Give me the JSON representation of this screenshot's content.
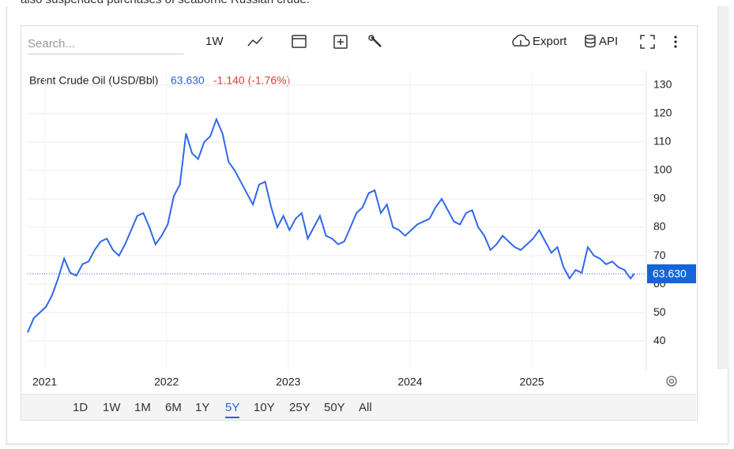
{
  "intro_text": "also suspended purchases of seaborne Russian crude.",
  "toolbar": {
    "search_placeholder": "Search...",
    "interval": "1W",
    "export": "Export",
    "api": "API"
  },
  "ranges": [
    "1D",
    "1W",
    "1M",
    "6M",
    "1Y",
    "5Y",
    "10Y",
    "25Y",
    "50Y",
    "All"
  ],
  "selected_range": 5,
  "chart_data": {
    "type": "line",
    "title": "Brent Crude Oil (USD/Bbl)",
    "price": {
      "value": 63.63,
      "label": "63.630"
    },
    "change_label": "-1.140 (-1.76%)",
    "x": [
      2020.86,
      2020.91,
      2020.96,
      2021.01,
      2021.06,
      2021.11,
      2021.16,
      2021.21,
      2021.26,
      2021.31,
      2021.36,
      2021.41,
      2021.46,
      2021.51,
      2021.56,
      2021.61,
      2021.66,
      2021.71,
      2021.76,
      2021.81,
      2021.86,
      2021.91,
      2021.96,
      2022.01,
      2022.06,
      2022.11,
      2022.16,
      2022.21,
      2022.26,
      2022.31,
      2022.36,
      2022.41,
      2022.46,
      2022.51,
      2022.56,
      2022.61,
      2022.66,
      2022.71,
      2022.76,
      2022.81,
      2022.86,
      2022.91,
      2022.96,
      2023.01,
      2023.06,
      2023.11,
      2023.16,
      2023.21,
      2023.26,
      2023.31,
      2023.36,
      2023.41,
      2023.46,
      2023.51,
      2023.56,
      2023.61,
      2023.66,
      2023.71,
      2023.76,
      2023.81,
      2023.86,
      2023.91,
      2023.96,
      2024.01,
      2024.06,
      2024.11,
      2024.16,
      2024.21,
      2024.26,
      2024.31,
      2024.36,
      2024.41,
      2024.46,
      2024.51,
      2024.56,
      2024.61,
      2024.66,
      2024.71,
      2024.76,
      2024.81,
      2024.86,
      2024.91,
      2024.96,
      2025.01,
      2025.06,
      2025.11,
      2025.16,
      2025.21,
      2025.26,
      2025.31,
      2025.36,
      2025.41,
      2025.46,
      2025.51,
      2025.56,
      2025.61,
      2025.66,
      2025.71,
      2025.76,
      2025.81,
      2025.84
    ],
    "series": [
      {
        "name": "Brent Crude Oil (USD/Bbl)",
        "color": "#3168ea",
        "values": [
          43,
          48,
          50,
          52,
          56,
          62,
          69,
          64,
          63,
          67,
          68,
          72,
          75,
          76,
          72,
          70,
          74,
          79,
          84,
          85,
          80,
          74,
          77,
          81,
          91,
          95,
          113,
          106,
          104,
          110,
          112,
          118,
          113,
          103,
          100,
          96,
          92,
          88,
          95,
          96,
          87,
          80,
          84,
          79,
          83,
          85,
          76,
          80,
          84,
          77,
          76,
          74,
          75,
          80,
          85,
          87,
          92,
          93,
          85,
          88,
          80,
          79,
          77,
          79,
          81,
          82,
          83,
          87,
          90,
          86,
          82,
          81,
          85,
          86,
          80,
          77,
          72,
          74,
          77,
          75,
          73,
          72,
          74,
          76,
          79,
          75,
          71,
          73,
          66,
          62,
          65,
          64,
          73,
          70,
          69,
          67,
          68,
          66,
          65,
          62,
          63.63
        ]
      }
    ],
    "xlim": [
      2020.86,
      2025.94
    ],
    "ylim": [
      29.5,
      135.5
    ],
    "xticks": [
      2021,
      2022,
      2023,
      2024,
      2025
    ],
    "yticks": [
      40,
      50,
      60,
      70,
      80,
      90,
      100,
      110,
      120,
      130
    ],
    "grid": true
  }
}
